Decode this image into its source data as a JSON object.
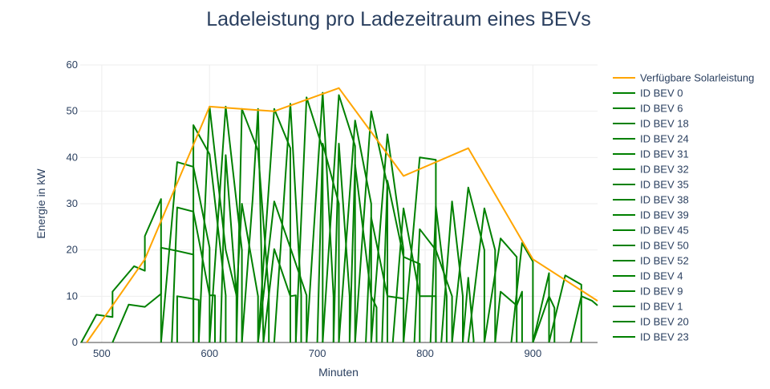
{
  "chart_data": {
    "type": "line",
    "title": "Ladeleistung pro Ladezeitraum eines BEVs",
    "xlabel": "Minuten",
    "ylabel": "Energie in kW",
    "xlim": [
      480,
      960
    ],
    "ylim": [
      0,
      60
    ],
    "xticks": [
      500,
      600,
      700,
      800,
      900
    ],
    "yticks": [
      0,
      10,
      20,
      30,
      40,
      50,
      60
    ],
    "grid": true,
    "legend_position": "right",
    "colors": {
      "solar": "#FFA500",
      "bev": "#008000"
    },
    "series": [
      {
        "name": "Verfügbare Solarleistung",
        "color": "#FFA500",
        "x": [
          486,
          540,
          600,
          660,
          720,
          780,
          840,
          900,
          960
        ],
        "y": [
          0,
          18,
          51,
          50,
          55,
          36,
          42,
          18,
          9
        ]
      },
      {
        "name": "ID BEV 0",
        "color": "#008000",
        "x": [
          481,
          495,
          510,
          510,
          530,
          540,
          540,
          555,
          555
        ],
        "y": [
          0,
          6,
          5.5,
          11,
          16.5,
          15.5,
          23,
          31,
          0
        ]
      },
      {
        "name": "ID BEV 6",
        "color": "#008000",
        "x": [
          510,
          525,
          540,
          555,
          555,
          570,
          585,
          585
        ],
        "y": [
          0,
          8.2,
          7.7,
          10.5,
          20.5,
          19.8,
          19,
          0
        ]
      },
      {
        "name": "ID BEV 18",
        "color": "#008000",
        "x": [
          555,
          570,
          585,
          600,
          600
        ],
        "y": [
          0,
          39,
          38,
          20.5,
          0
        ]
      },
      {
        "name": "ID BEV 24",
        "color": "#008000",
        "x": [
          565,
          570,
          585,
          600,
          605,
          605
        ],
        "y": [
          0,
          29.2,
          28.3,
          10.2,
          10.2,
          0
        ]
      },
      {
        "name": "ID BEV 31",
        "color": "#008000",
        "x": [
          570,
          570,
          590,
          590
        ],
        "y": [
          0,
          10,
          9.2,
          0
        ]
      },
      {
        "name": "ID BEV 32",
        "color": "#008000",
        "x": [
          585,
          585,
          600,
          615,
          615
        ],
        "y": [
          0,
          47,
          40.7,
          10.2,
          0
        ]
      },
      {
        "name": "ID BEV 35",
        "color": "#008000",
        "x": [
          590,
          600,
          615,
          625,
          625
        ],
        "y": [
          0,
          51,
          20,
          10.2,
          0
        ]
      },
      {
        "name": "ID BEV 38",
        "color": "#008000",
        "x": [
          600,
          615,
          630,
          630
        ],
        "y": [
          0,
          51,
          20,
          0
        ]
      },
      {
        "name": "ID BEV 39",
        "color": "#008000",
        "x": [
          610,
          615,
          625,
          630,
          645,
          645
        ],
        "y": [
          0,
          40.5,
          10.1,
          30,
          10,
          0
        ]
      },
      {
        "name": "ID BEV 45",
        "color": "#008000",
        "x": [
          625,
          630,
          645,
          655,
          655
        ],
        "y": [
          0,
          50.5,
          41.5,
          10.5,
          0
        ]
      },
      {
        "name": "ID BEV 50",
        "color": "#008000",
        "x": [
          630,
          640,
          645,
          650,
          650
        ],
        "y": [
          0,
          31,
          50.5,
          0.5,
          0
        ]
      },
      {
        "name": "ID BEV 52",
        "color": "#008000",
        "x": [
          645,
          660,
          675,
          675
        ],
        "y": [
          0,
          50.5,
          42,
          0
        ]
      },
      {
        "name": "ID BEV 4",
        "color": "#008000",
        "x": [
          645,
          660,
          675,
          690,
          690
        ],
        "y": [
          0,
          30.5,
          20.5,
          10.2,
          0
        ]
      },
      {
        "name": "ID BEV 9",
        "color": "#008000",
        "x": [
          650,
          660,
          675,
          680,
          680
        ],
        "y": [
          0,
          20.2,
          10,
          10.2,
          0
        ]
      },
      {
        "name": "ID BEV 1",
        "color": "#008000",
        "x": [
          660,
          675,
          685,
          685
        ],
        "y": [
          0,
          51.6,
          10.3,
          0
        ]
      },
      {
        "name": "ID BEV 20",
        "color": "#008000",
        "x": [
          680,
          690,
          705,
          705
        ],
        "y": [
          0,
          53,
          42,
          0
        ]
      },
      {
        "name": "ID BEV 23",
        "color": "#008000",
        "x": [
          690,
          705,
          715,
          715
        ],
        "y": [
          0,
          54,
          10,
          0
        ]
      }
    ],
    "extra_traces": [
      {
        "color": "#008000",
        "x": [
          700,
          705,
          720,
          720
        ],
        "y": [
          0,
          43,
          30,
          0
        ]
      },
      {
        "color": "#008000",
        "x": [
          705,
          720,
          735,
          735
        ],
        "y": [
          0,
          53.5,
          42.5,
          0
        ]
      },
      {
        "color": "#008000",
        "x": [
          715,
          720,
          730,
          730
        ],
        "y": [
          0,
          43,
          10,
          0
        ]
      },
      {
        "color": "#008000",
        "x": [
          720,
          735,
          750,
          750
        ],
        "y": [
          0,
          48,
          30,
          0
        ]
      },
      {
        "color": "#008000",
        "x": [
          730,
          735,
          750,
          755,
          755
        ],
        "y": [
          0,
          38.5,
          10,
          7.6,
          0
        ]
      },
      {
        "color": "#008000",
        "x": [
          735,
          750,
          765,
          765
        ],
        "y": [
          0,
          50,
          34,
          0
        ]
      },
      {
        "color": "#008000",
        "x": [
          745,
          750,
          765,
          780,
          780
        ],
        "y": [
          0,
          27,
          10,
          9.5,
          0
        ]
      },
      {
        "color": "#008000",
        "x": [
          750,
          765,
          780,
          780
        ],
        "y": [
          0,
          45,
          20,
          0
        ]
      },
      {
        "color": "#008000",
        "x": [
          760,
          765,
          780,
          795,
          795
        ],
        "y": [
          0,
          35,
          18.5,
          17,
          0
        ]
      },
      {
        "color": "#008000",
        "x": [
          770,
          780,
          795,
          810,
          810
        ],
        "y": [
          0,
          29,
          10,
          10,
          0
        ]
      },
      {
        "color": "#008000",
        "x": [
          780,
          795,
          810,
          810
        ],
        "y": [
          0,
          40,
          39.5,
          0
        ]
      },
      {
        "color": "#008000",
        "x": [
          790,
          795,
          810,
          825,
          825
        ],
        "y": [
          0,
          24.5,
          20,
          10,
          0
        ]
      },
      {
        "color": "#008000",
        "x": [
          805,
          810,
          820,
          820
        ],
        "y": [
          0,
          29.5,
          10,
          0
        ]
      },
      {
        "color": "#008000",
        "x": [
          815,
          825,
          835,
          835
        ],
        "y": [
          0,
          30.5,
          10,
          0
        ]
      },
      {
        "color": "#008000",
        "x": [
          825,
          840,
          855,
          855
        ],
        "y": [
          0,
          33.5,
          20,
          0
        ]
      },
      {
        "color": "#008000",
        "x": [
          835,
          840,
          845,
          845
        ],
        "y": [
          0,
          14,
          0.5,
          0
        ]
      },
      {
        "color": "#008000",
        "x": [
          840,
          855,
          865,
          865
        ],
        "y": [
          0,
          29,
          20,
          0
        ]
      },
      {
        "color": "#008000",
        "x": [
          855,
          870,
          885,
          885
        ],
        "y": [
          0,
          22.5,
          18.5,
          0
        ]
      },
      {
        "color": "#008000",
        "x": [
          865,
          870,
          885,
          890,
          890
        ],
        "y": [
          0,
          11,
          8,
          11,
          0
        ]
      },
      {
        "color": "#008000",
        "x": [
          880,
          890,
          900,
          900
        ],
        "y": [
          0,
          21.5,
          17.5,
          0
        ]
      },
      {
        "color": "#008000",
        "x": [
          900,
          915,
          915
        ],
        "y": [
          0,
          15,
          0
        ]
      },
      {
        "color": "#008000",
        "x": [
          900,
          915,
          920,
          920
        ],
        "y": [
          0,
          10,
          7.5,
          0
        ]
      },
      {
        "color": "#008000",
        "x": [
          915,
          930,
          945,
          945
        ],
        "y": [
          0,
          14.5,
          12.5,
          0
        ]
      },
      {
        "color": "#008000",
        "x": [
          935,
          945,
          955,
          960
        ],
        "y": [
          0,
          10,
          9,
          8
        ]
      }
    ]
  }
}
